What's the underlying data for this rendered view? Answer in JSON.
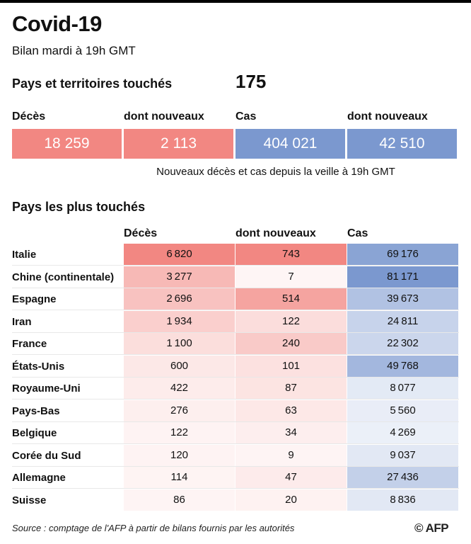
{
  "header": {
    "title": "Covid-19",
    "subtitle": "Bilan mardi à 19h GMT",
    "affected_label": "Pays et territoires touchés",
    "affected_value": "175"
  },
  "summary": {
    "items": [
      {
        "label": "Décès",
        "value": "18 259",
        "color": "#f28782"
      },
      {
        "label": "dont nouveaux",
        "value": "2 113",
        "color": "#f28782"
      },
      {
        "label": "Cas",
        "value": "404 021",
        "color": "#7b98cf"
      },
      {
        "label": "dont nouveaux",
        "value": "42 510",
        "color": "#7b98cf"
      }
    ],
    "note": "Nouveaux décès et cas depuis la veille à 19h GMT"
  },
  "chart_data": {
    "type": "table",
    "title": "Pays les plus touchés",
    "columns": [
      "Décès",
      "dont nouveaux",
      "Cas"
    ],
    "rows": [
      {
        "country": "Italie",
        "deaths": 6820,
        "new_deaths": 743,
        "cases": 69176
      },
      {
        "country": "Chine (continentale)",
        "deaths": 3277,
        "new_deaths": 7,
        "cases": 81171
      },
      {
        "country": "Espagne",
        "deaths": 2696,
        "new_deaths": 514,
        "cases": 39673
      },
      {
        "country": "Iran",
        "deaths": 1934,
        "new_deaths": 122,
        "cases": 24811
      },
      {
        "country": "France",
        "deaths": 1100,
        "new_deaths": 240,
        "cases": 22302
      },
      {
        "country": "États-Unis",
        "deaths": 600,
        "new_deaths": 101,
        "cases": 49768
      },
      {
        "country": "Royaume-Uni",
        "deaths": 422,
        "new_deaths": 87,
        "cases": 8077
      },
      {
        "country": "Pays-Bas",
        "deaths": 276,
        "new_deaths": 63,
        "cases": 5560
      },
      {
        "country": "Belgique",
        "deaths": 122,
        "new_deaths": 34,
        "cases": 4269
      },
      {
        "country": "Corée du Sud",
        "deaths": 120,
        "new_deaths": 9,
        "cases": 9037
      },
      {
        "country": "Allemagne",
        "deaths": 114,
        "new_deaths": 47,
        "cases": 27436
      },
      {
        "country": "Suisse",
        "deaths": 86,
        "new_deaths": 20,
        "cases": 8836
      }
    ],
    "deaths_color": "#f28782",
    "cases_color": "#7b98cf"
  },
  "footer": {
    "source": "Source : comptage de l'AFP à partir de bilans fournis par les autorités",
    "logo": "© AFP"
  }
}
